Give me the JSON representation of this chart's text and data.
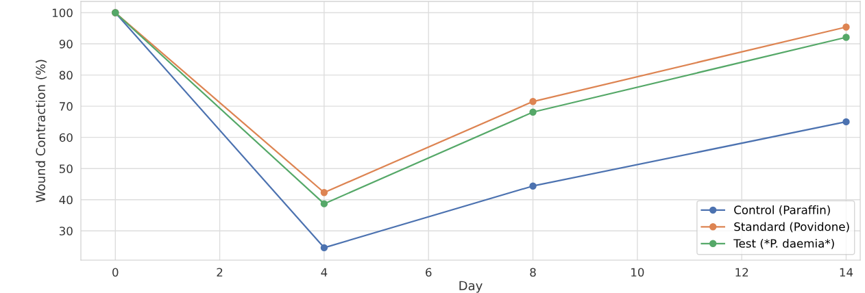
{
  "chart_data": {
    "type": "line",
    "xlabel": "Day",
    "ylabel": "Wound Contraction (%)",
    "x": [
      0,
      4,
      8,
      14
    ],
    "series": [
      {
        "name": "Control (Paraffin)",
        "color": "#4c72b0",
        "values": [
          100,
          24.6,
          44.4,
          65.0
        ]
      },
      {
        "name": "Standard (Povidone)",
        "color": "#dd8452",
        "values": [
          100,
          42.3,
          71.5,
          95.4
        ]
      },
      {
        "name": "Test (*P. daemia*)",
        "color": "#55a868",
        "values": [
          100,
          38.7,
          68.1,
          92.1
        ]
      }
    ],
    "xlim": [
      -0.66,
      14.27
    ],
    "ylim": [
      20.6,
      103.6
    ],
    "xticks": [
      0,
      2,
      4,
      6,
      8,
      10,
      12,
      14
    ],
    "yticks": [
      30,
      40,
      50,
      60,
      70,
      80,
      90,
      100
    ],
    "grid": true,
    "legend": "bottom right",
    "marker": "circle",
    "line_style": "solid"
  }
}
